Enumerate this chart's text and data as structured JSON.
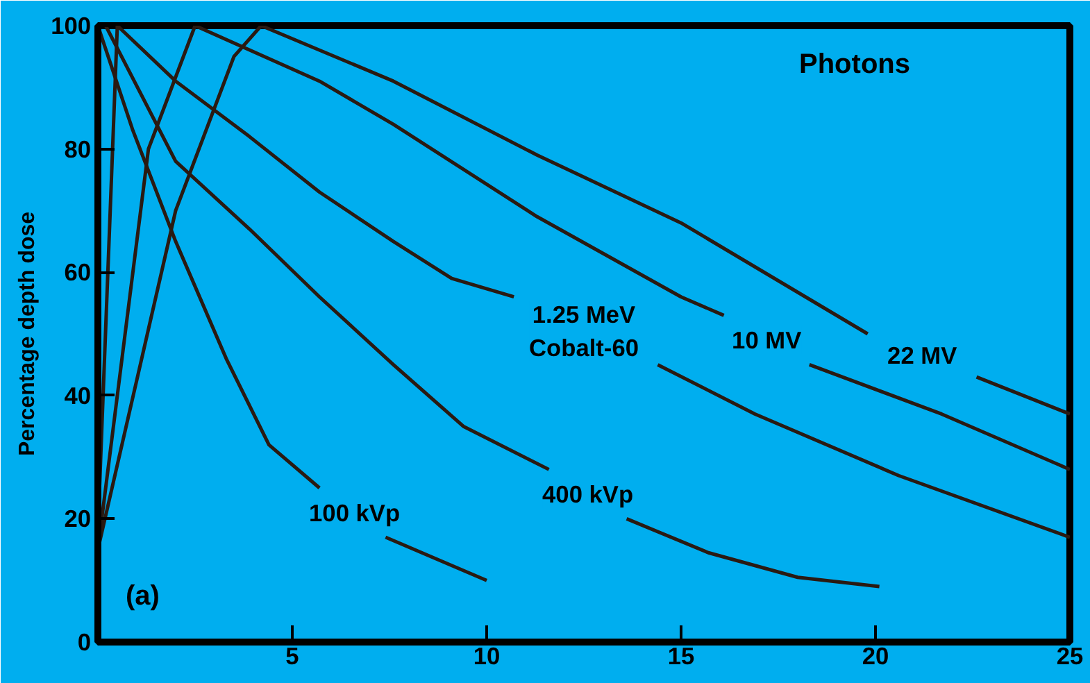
{
  "chart_data": {
    "type": "line",
    "ylabel": "Percentage depth dose",
    "xlim": [
      0,
      25
    ],
    "ylim": [
      0,
      100
    ],
    "xticks": [
      5,
      10,
      15,
      20,
      25
    ],
    "yticks": [
      0,
      20,
      40,
      60,
      80,
      100
    ],
    "grid": false,
    "legend": false,
    "marker": "none",
    "line_style": "solid",
    "annotations": [
      "Photons",
      "(a)"
    ],
    "series": [
      {
        "name": "100 kVp",
        "color": "#2a1a12",
        "x": [
          0,
          0.9,
          2,
          3.3,
          4.4,
          5.7,
          6.6,
          7.4,
          10
        ],
        "values": [
          100,
          83,
          65,
          46,
          32,
          25,
          null,
          17,
          10
        ]
      },
      {
        "name": "400 kVp",
        "color": "#2a1a12",
        "x": [
          0.2,
          2,
          3.9,
          5.7,
          7.6,
          9.4,
          11.6,
          12.6,
          13.6,
          15.7,
          18,
          20.1
        ],
        "values": [
          100,
          78,
          67,
          56,
          45,
          35,
          28,
          null,
          20,
          14.5,
          10.5,
          9
        ]
      },
      {
        "name": "1.25 MeV\nCobalt-60",
        "color": "#2a1a12",
        "x": [
          0,
          0.5,
          2,
          3.9,
          5.7,
          7.6,
          9.1,
          10.7,
          12.5,
          14.4,
          16.9,
          20.6,
          25
        ],
        "values": [
          18,
          100,
          91,
          82,
          73,
          65,
          59,
          56,
          null,
          45,
          37,
          27,
          17
        ]
      },
      {
        "name": "10 MV",
        "color": "#2a1a12",
        "x": [
          0,
          1.3,
          2.5,
          5.7,
          7.6,
          11.3,
          15,
          16.1,
          17.2,
          18.3,
          21.7,
          25
        ],
        "values": [
          15,
          80,
          100,
          91,
          84,
          69,
          56,
          53,
          null,
          45,
          37,
          28
        ]
      },
      {
        "name": "22 MV",
        "color": "#2a1a12",
        "x": [
          0,
          2,
          3.5,
          4.2,
          7.6,
          11.3,
          15,
          19.8,
          21.2,
          22.6,
          25
        ],
        "values": [
          15,
          70,
          95,
          100,
          91,
          79,
          68,
          50,
          null,
          43,
          37
        ]
      }
    ]
  }
}
